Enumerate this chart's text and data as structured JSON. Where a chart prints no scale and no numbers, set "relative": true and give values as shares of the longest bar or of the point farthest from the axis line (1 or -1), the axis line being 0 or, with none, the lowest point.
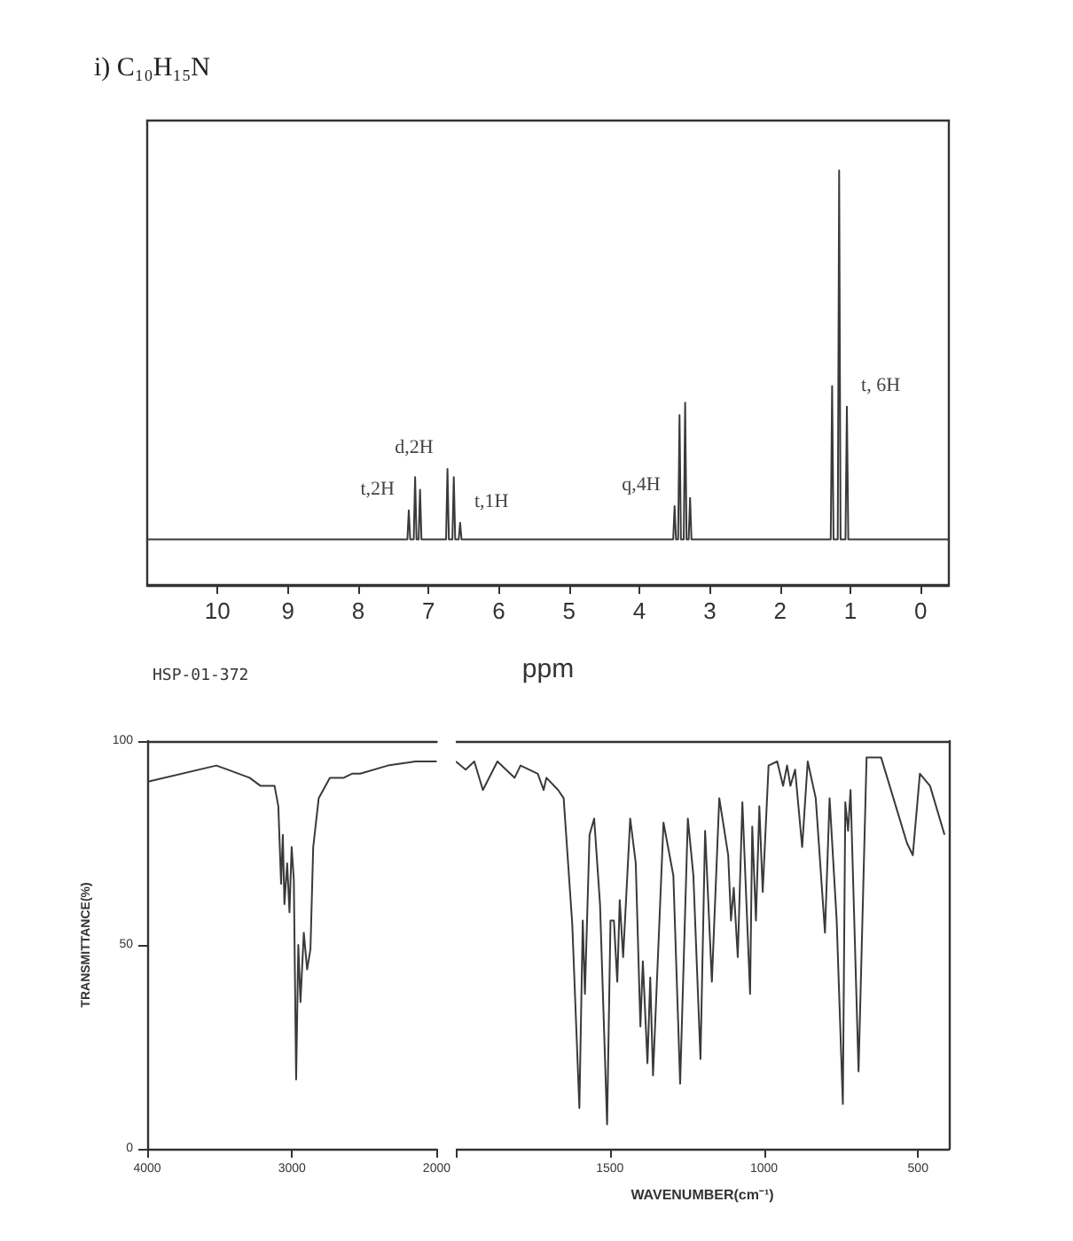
{
  "chart_data": [
    {
      "type": "line",
      "title": "i) C₁₀H₁₅N",
      "xlabel": "ppm",
      "relative": true,
      "color": "#3a3a3a",
      "marker": "none",
      "xlim": [
        11,
        -0.4
      ],
      "xticks": [
        10,
        9,
        8,
        7,
        6,
        5,
        4,
        3,
        2,
        1,
        0
      ],
      "x": [
        11,
        7.35,
        7.3,
        7.28,
        7.26,
        7.21,
        7.19,
        7.17,
        7.14,
        7.12,
        7.1,
        6.75,
        6.73,
        6.71,
        6.66,
        6.64,
        6.62,
        6.57,
        6.55,
        6.53,
        3.52,
        3.5,
        3.48,
        3.45,
        3.43,
        3.41,
        3.37,
        3.35,
        3.33,
        3.3,
        3.28,
        3.26,
        1.28,
        1.26,
        1.24,
        1.18,
        1.16,
        1.14,
        1.07,
        1.05,
        1.03,
        -0.4
      ],
      "values": [
        0.11,
        0.11,
        0.11,
        0.18,
        0.11,
        0.11,
        0.26,
        0.11,
        0.11,
        0.23,
        0.11,
        0.11,
        0.28,
        0.11,
        0.11,
        0.26,
        0.11,
        0.11,
        0.15,
        0.11,
        0.11,
        0.19,
        0.11,
        0.11,
        0.41,
        0.11,
        0.11,
        0.44,
        0.11,
        0.11,
        0.21,
        0.11,
        0.11,
        0.48,
        0.11,
        0.11,
        1,
        0.11,
        0.11,
        0.43,
        0.11,
        0.11
      ],
      "annotations": [
        {
          "text": "t,2H",
          "x": 7.28,
          "y": 0.18
        },
        {
          "text": "d,2H",
          "x": 6.73,
          "y": 0.28
        },
        {
          "text": "t,1H",
          "x": 6.55,
          "y": 0.15
        },
        {
          "text": "q,4H",
          "x": 3.5,
          "y": 0.19
        },
        {
          "text": "t, 6H",
          "x": 1.05,
          "y": 0.43
        },
        "HSP-01-372"
      ]
    },
    {
      "type": "line",
      "ylabel": "TRANSMITTANCE(%)",
      "color": "#3a3a3a",
      "marker": "none",
      "xlim": [
        4000,
        2000
      ],
      "xticks": [
        4000,
        3000,
        2000
      ],
      "ylim": [
        0,
        100
      ],
      "yticks": [
        0,
        50,
        100
      ],
      "x": [
        4000,
        3522,
        3293,
        3216,
        3120,
        3094,
        3075,
        3063,
        3052,
        3033,
        3017,
        3002,
        2987,
        2971,
        2956,
        2941,
        2918,
        2895,
        2872,
        2853,
        2815,
        2738,
        2642,
        2585,
        2528,
        2337,
        2145,
        2000
      ],
      "values": [
        90,
        94,
        91,
        89,
        89,
        84,
        65,
        77,
        60,
        70,
        58,
        74,
        66,
        17,
        50,
        36,
        53,
        44,
        49,
        74,
        86,
        91,
        91,
        92,
        92,
        94,
        95,
        95
      ]
    },
    {
      "type": "line",
      "xlabel": "WAVENUMBER(cm⁻¹)",
      "tick_labels": "x",
      "color": "#3a3a3a",
      "marker": "none",
      "xlim": [
        2000,
        400
      ],
      "xticks": [
        {
          "value": 2000,
          "label": null
        },
        1500,
        1000,
        500
      ],
      "ylim": [
        0,
        100
      ],
      "x": [
        2000,
        1996,
        1968,
        1940,
        1912,
        1865,
        1809,
        1790,
        1734,
        1715,
        1706,
        1668,
        1650,
        1622,
        1599,
        1588,
        1581,
        1566,
        1551,
        1532,
        1509,
        1498,
        1487,
        1476,
        1468,
        1457,
        1434,
        1416,
        1401,
        1393,
        1378,
        1369,
        1360,
        1326,
        1294,
        1272,
        1247,
        1229,
        1206,
        1191,
        1169,
        1145,
        1116,
        1107,
        1098,
        1085,
        1070,
        1045,
        1038,
        1026,
        1015,
        1004,
        985,
        957,
        938,
        925,
        914,
        899,
        876,
        858,
        832,
        802,
        787,
        764,
        744,
        736,
        727,
        719,
        693,
        667,
        620,
        536,
        517,
        494,
        461,
        414
      ],
      "values": [
        95,
        95,
        93,
        95,
        88,
        95,
        91,
        94,
        92,
        88,
        91,
        88,
        86,
        55,
        10,
        56,
        38,
        77,
        81,
        60,
        6,
        56,
        56,
        41,
        61,
        47,
        81,
        70,
        30,
        46,
        21,
        42,
        18,
        80,
        67,
        16,
        81,
        67,
        22,
        78,
        41,
        86,
        72,
        56,
        64,
        47,
        85,
        38,
        79,
        56,
        84,
        63,
        94,
        95,
        89,
        94,
        89,
        93,
        74,
        95,
        86,
        53,
        86,
        56,
        11,
        85,
        78,
        88,
        19,
        96,
        96,
        75,
        72,
        92,
        89,
        77
      ]
    }
  ]
}
